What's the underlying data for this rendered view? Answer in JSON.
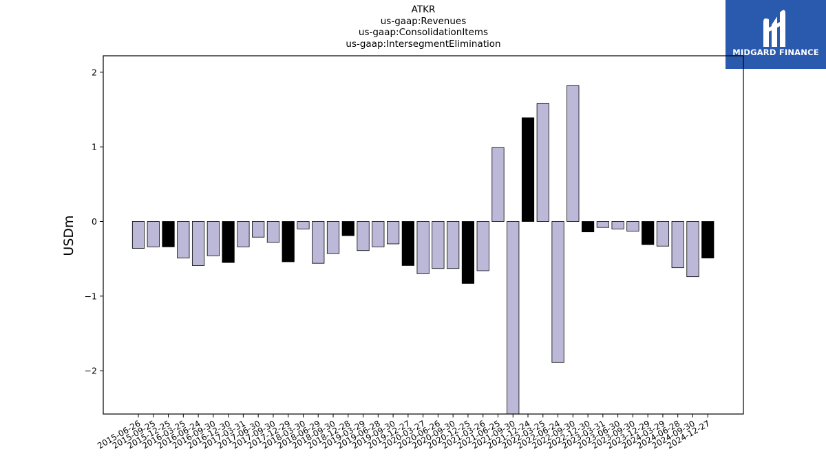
{
  "title_lines": [
    "ATKR",
    "us-gaap:Revenues",
    "us-gaap:ConsolidationItems",
    "us-gaap:IntersegmentElimination"
  ],
  "logo": {
    "text": "MIDGARD FINANCE",
    "background": "#2a5aad",
    "icon": "midgard-logo-icon"
  },
  "chart_data": {
    "type": "bar",
    "ylabel": "USDm",
    "xlabel": "",
    "ylim": [
      -2.58,
      2.22
    ],
    "yticks": [
      -2,
      -1,
      0,
      1,
      2
    ],
    "ytick_labels": [
      "−2",
      "−1",
      "0",
      "1",
      "2"
    ],
    "grid": false,
    "colors": {
      "regular": "#bcb8d8",
      "fiscal_year_end": "#000000",
      "edge": "#000000"
    },
    "categories": [
      "2015-06-26",
      "2015-09-25",
      "2015-12-25",
      "2016-03-25",
      "2016-06-24",
      "2016-09-30",
      "2016-12-30",
      "2017-03-31",
      "2017-06-30",
      "2017-09-30",
      "2017-12-29",
      "2018-03-30",
      "2018-06-29",
      "2018-09-30",
      "2018-12-28",
      "2019-03-29",
      "2019-06-28",
      "2019-09-30",
      "2019-12-27",
      "2020-03-27",
      "2020-06-26",
      "2020-09-30",
      "2020-12-25",
      "2021-03-26",
      "2021-06-25",
      "2021-09-30",
      "2021-12-24",
      "2022-03-25",
      "2022-06-24",
      "2022-09-30",
      "2022-12-30",
      "2023-03-31",
      "2023-06-30",
      "2023-09-30",
      "2023-12-29",
      "2024-03-29",
      "2024-06-28",
      "2024-09-30",
      "2024-12-27"
    ],
    "values": [
      -0.36,
      -0.34,
      -0.34,
      -0.49,
      -0.59,
      -0.46,
      -0.55,
      -0.34,
      -0.21,
      -0.28,
      -0.54,
      -0.1,
      -0.56,
      -0.43,
      -0.19,
      -0.39,
      -0.34,
      -0.3,
      -0.59,
      -0.7,
      -0.63,
      -0.63,
      -0.83,
      -0.66,
      0.99,
      -2.62,
      1.39,
      1.58,
      -1.89,
      1.82,
      -0.14,
      -0.08,
      -0.1,
      -0.13,
      -0.31,
      -0.33,
      -0.62,
      -0.74,
      -0.49
    ],
    "highlight": [
      false,
      false,
      true,
      false,
      false,
      false,
      true,
      false,
      false,
      false,
      true,
      false,
      false,
      false,
      true,
      false,
      false,
      false,
      true,
      false,
      false,
      false,
      true,
      false,
      false,
      false,
      true,
      false,
      false,
      false,
      true,
      false,
      false,
      false,
      true,
      false,
      false,
      false,
      true
    ]
  }
}
